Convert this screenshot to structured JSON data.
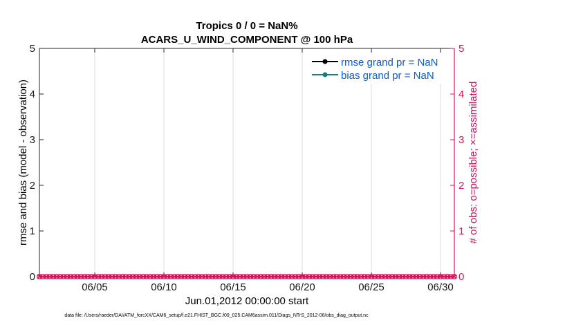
{
  "chart_data": {
    "type": "line",
    "title": [
      "Tropics 0 / 0 = NaN%",
      "ACARS_U_WIND_COMPONENT @ 100 hPa"
    ],
    "xlabel": "Jun.01,2012 00:00:00 start",
    "ylabel": "rmse and bias (model - observation)",
    "y2label": "# of obs: o=possible; ×=assimilated",
    "xlim": [
      1,
      31
    ],
    "ylim": [
      0,
      5
    ],
    "y2lim": [
      0,
      5
    ],
    "x_ticks": [
      {
        "value": 5,
        "label": "06/05"
      },
      {
        "value": 10,
        "label": "06/10"
      },
      {
        "value": 15,
        "label": "06/15"
      },
      {
        "value": 20,
        "label": "06/20"
      },
      {
        "value": 25,
        "label": "06/25"
      },
      {
        "value": 30,
        "label": "06/30"
      }
    ],
    "y_ticks": [
      "0",
      "1",
      "2",
      "3",
      "4",
      "5"
    ],
    "y2_ticks": [
      "0",
      "1",
      "2",
      "3",
      "4",
      "5"
    ],
    "grid": "vertical",
    "legend_position": "top-right",
    "series": [
      {
        "name": "rmse grand pr = NaN",
        "color": "#000000",
        "marker": "circle",
        "values": []
      },
      {
        "name": "bias grand pr = NaN",
        "color": "#0f7f7f",
        "marker": "circle",
        "values": []
      },
      {
        "name": "obs possible",
        "axis": "right",
        "color": "#d4145a",
        "marker": "o",
        "x": [
          1,
          1.25,
          1.5,
          1.75,
          2,
          2.25,
          2.5,
          2.75,
          3,
          3.25,
          3.5,
          3.75,
          4,
          4.25,
          4.5,
          4.75,
          5,
          5.25,
          5.5,
          5.75,
          6,
          6.25,
          6.5,
          6.75,
          7,
          7.25,
          7.5,
          7.75,
          8,
          8.25,
          8.5,
          8.75,
          9,
          9.25,
          9.5,
          9.75,
          10,
          10.25,
          10.5,
          10.75,
          11,
          11.25,
          11.5,
          11.75,
          12,
          12.25,
          12.5,
          12.75,
          13,
          13.25,
          13.5,
          13.75,
          14,
          14.25,
          14.5,
          14.75,
          15,
          15.25,
          15.5,
          15.75,
          16,
          16.25,
          16.5,
          16.75,
          17,
          17.25,
          17.5,
          17.75,
          18,
          18.25,
          18.5,
          18.75,
          19,
          19.25,
          19.5,
          19.75,
          20,
          20.25,
          20.5,
          20.75,
          21,
          21.25,
          21.5,
          21.75,
          22,
          22.25,
          22.5,
          22.75,
          23,
          23.25,
          23.5,
          23.75,
          24,
          24.25,
          24.5,
          24.75,
          25,
          25.25,
          25.5,
          25.75,
          26,
          26.25,
          26.5,
          26.75,
          27,
          27.25,
          27.5,
          27.75,
          28,
          28.25,
          28.5,
          28.75,
          29,
          29.25,
          29.5,
          29.75,
          30,
          30.25,
          30.5,
          30.75,
          31
        ],
        "value": 0
      },
      {
        "name": "obs assimilated",
        "axis": "right",
        "color": "#d4145a",
        "marker": "x",
        "value": 0
      }
    ]
  },
  "footer": "data file: /Users/raeder/DAI/ATM_forcXX/CAM6_setup/f.e21.FHIST_BGC.f09_025.CAM6assim.011/Diags_NTrS_2012-06/obs_diag_output.nc"
}
